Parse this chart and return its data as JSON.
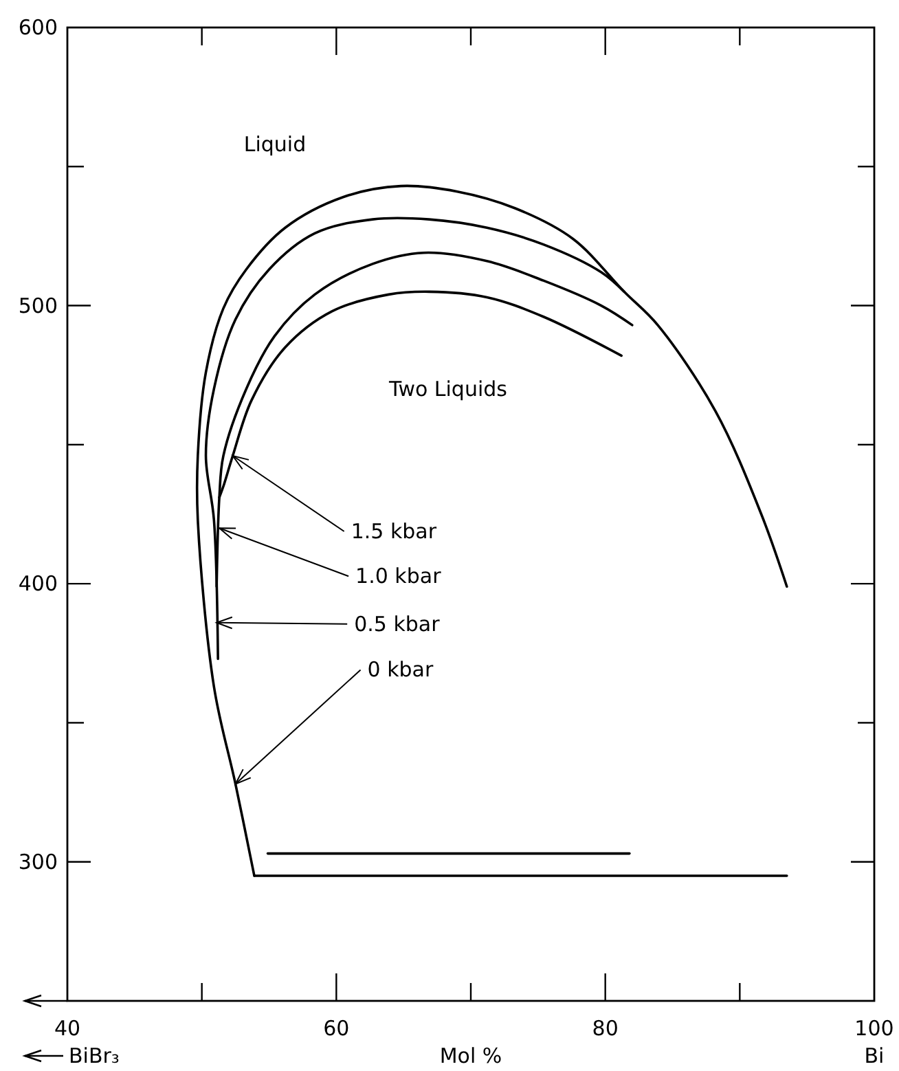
{
  "chart_data": {
    "type": "line",
    "xlabel": "Mol %",
    "xlim": [
      40,
      100
    ],
    "ylim": [
      250,
      600
    ],
    "xticks": [
      40,
      {
        "value": 50,
        "label": null
      },
      60,
      {
        "value": 70,
        "label": null
      },
      80,
      {
        "value": 90,
        "label": null
      },
      100
    ],
    "yticks": [
      {
        "value": 250,
        "label": null
      },
      300,
      {
        "value": 350,
        "label": null
      },
      400,
      {
        "value": 450,
        "label": null
      },
      500,
      {
        "value": 550,
        "label": null
      },
      600
    ],
    "series": [
      {
        "color": "#000000",
        "x": [
          53.9,
          52.5,
          50.9,
          49.7,
          49.7,
          50.3,
          51.6,
          53.3,
          56.2,
          60.5,
          64.8,
          69,
          73.3,
          77.6,
          81.4,
          83.9,
          88.2,
          91.6,
          93.5
        ],
        "values": [
          295,
          328,
          363,
          423,
          446,
          476,
          499,
          513,
          528,
          539,
          543,
          541,
          535,
          524,
          505,
          493,
          462,
          425,
          399
        ]
      },
      {
        "color": "#000000",
        "x": [
          51.2,
          50.9,
          50.3,
          50.9,
          52.5,
          55.0,
          58.4,
          62.7,
          66.9,
          71.2,
          75.4,
          79.7,
          81.4
        ],
        "values": [
          373,
          423,
          446,
          470,
          495,
          513,
          526,
          531,
          531,
          528,
          522,
          512,
          505
        ]
      },
      {
        "color": "#000000",
        "x": [
          51.1,
          51.3,
          51.6,
          53.3,
          55.4,
          58.4,
          62.7,
          66.5,
          71.2,
          75.4,
          79.7,
          82.0
        ],
        "values": [
          399,
          431,
          446,
          470,
          489,
          504,
          515,
          519,
          516,
          509,
          500,
          493
        ]
      },
      {
        "color": "#000000",
        "x": [
          51.3,
          51.6,
          52.3,
          53.7,
          56.2,
          59.7,
          63.9,
          66.9,
          71.2,
          75.4,
          81.2
        ],
        "values": [
          431,
          435,
          446,
          466,
          485,
          498,
          504,
          505,
          503,
          496,
          482
        ]
      },
      {
        "color": "#000000",
        "x": [
          53.9,
          93.5
        ],
        "values": [
          295,
          295
        ]
      },
      {
        "color": "#000000",
        "x": [
          54.9,
          81.8
        ],
        "values": [
          303,
          303
        ]
      }
    ],
    "annotations": [
      "Liquid",
      "Two Liquids",
      {
        "text": "1.5 kbar",
        "x": 52.3,
        "y": 446
      },
      {
        "text": "1.0 kbar",
        "x": 51.3,
        "y": 420
      },
      {
        "text": "0.5 kbar",
        "x": 51.1,
        "y": 386
      },
      {
        "text": "0 kbar",
        "x": 52.5,
        "y": 328
      },
      "BiBr₃",
      "Bi"
    ]
  }
}
